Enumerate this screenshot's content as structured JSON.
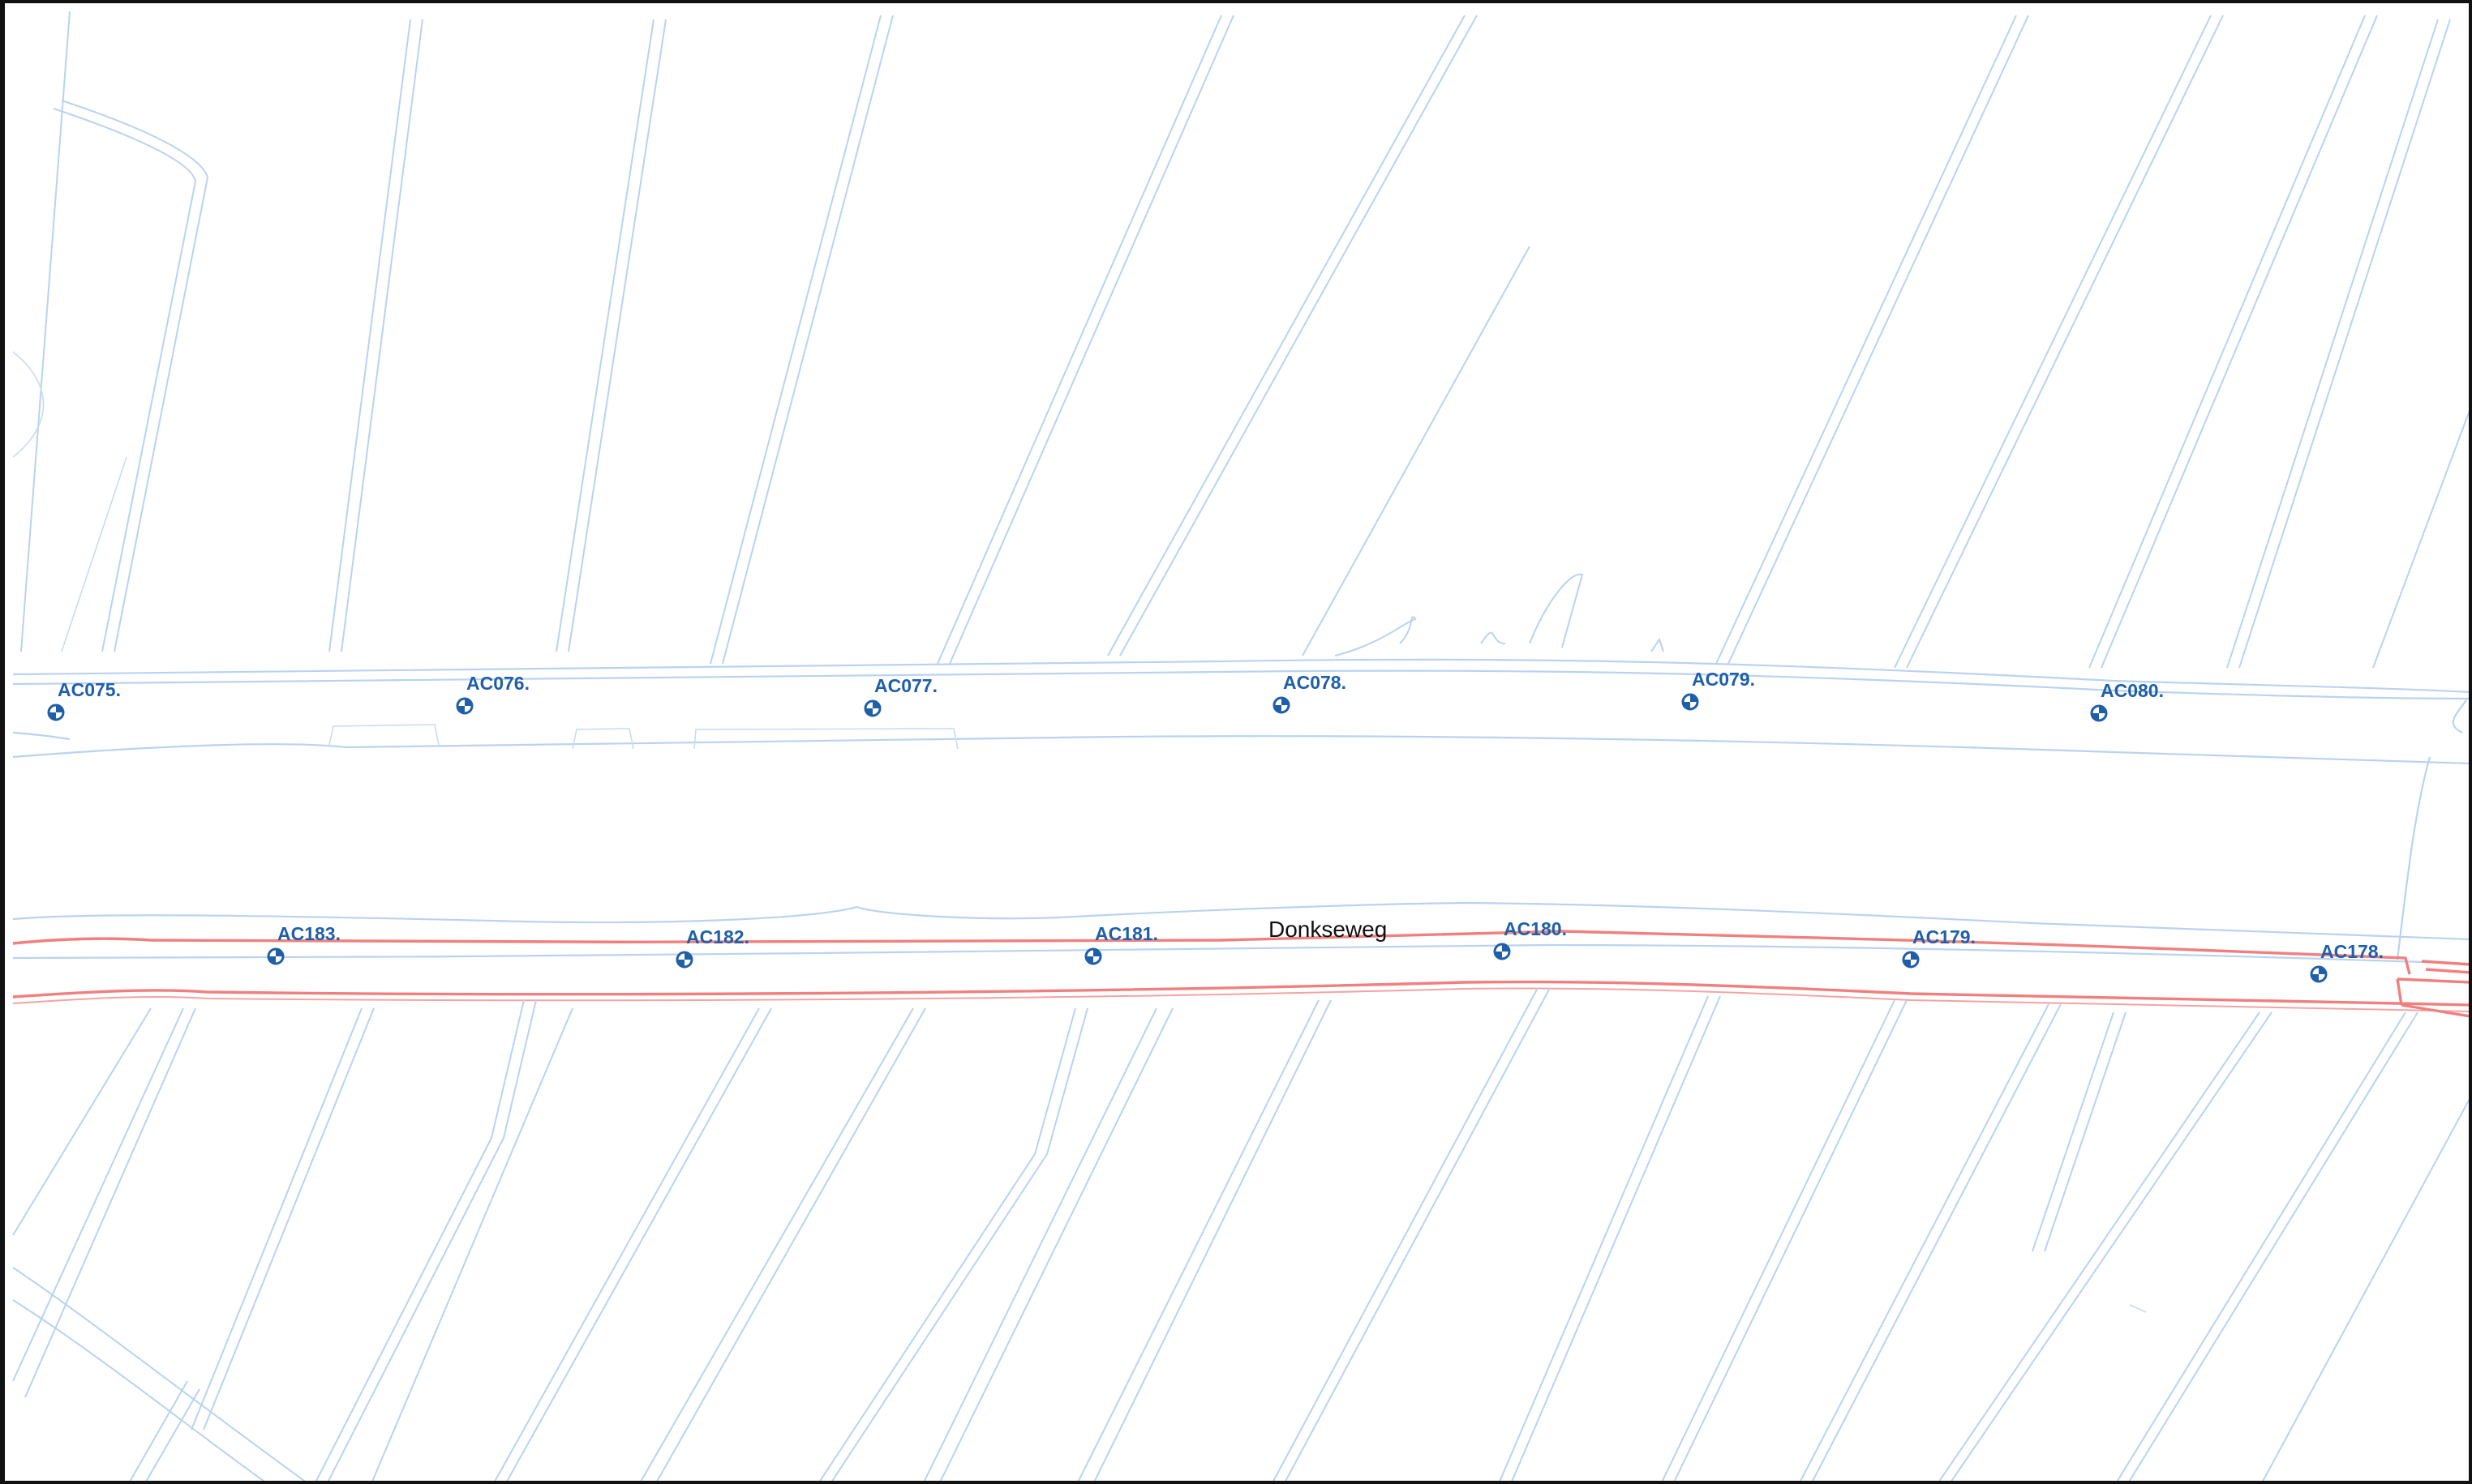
{
  "map": {
    "street_name": "Donkseweg",
    "marker_icon": "survey-marker-icon",
    "colors": {
      "water_lines": "#b9d3ef",
      "dike_boundary": "#f08080",
      "marker": "#1f5fa8",
      "frame": "#111111"
    },
    "north_markers": [
      {
        "label": "AC075."
      },
      {
        "label": "AC076."
      },
      {
        "label": "AC077."
      },
      {
        "label": "AC078."
      },
      {
        "label": "AC079."
      },
      {
        "label": "AC080."
      }
    ],
    "south_markers": [
      {
        "label": "AC183."
      },
      {
        "label": "AC182."
      },
      {
        "label": "AC181."
      },
      {
        "label": "AC180."
      },
      {
        "label": "AC179."
      },
      {
        "label": "AC178."
      }
    ]
  }
}
